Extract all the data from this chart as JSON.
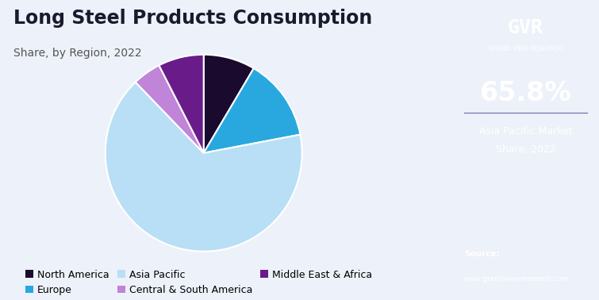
{
  "title": "Long Steel Products Consumption",
  "subtitle": "Share, by Region, 2022",
  "segments": [
    {
      "label": "North America",
      "value": 8.5,
      "color": "#1a0a2e"
    },
    {
      "label": "Europe",
      "value": 13.5,
      "color": "#29a8e0"
    },
    {
      "label": "Asia Pacific",
      "value": 65.8,
      "color": "#b8dff5"
    },
    {
      "label": "Central & South America",
      "value": 4.7,
      "color": "#c084d8"
    },
    {
      "label": "Middle East & Africa",
      "value": 7.5,
      "color": "#6a1b8a"
    }
  ],
  "highlight_value": "65.8%",
  "highlight_label1": "Asia Pacific Market",
  "highlight_label2": "Share, 2022",
  "background_color": "#edf1f9",
  "right_panel_color": "#1e1040",
  "right_bot_color": "#2535a0",
  "start_angle": 90,
  "title_fontsize": 17,
  "subtitle_fontsize": 10,
  "legend_fontsize": 9,
  "source_line1": "Source:",
  "source_line2": "www.grandviewresearch.com",
  "gvr_text": "GVR",
  "gvr_subtext": "GRAND VIEW RESEARCH"
}
